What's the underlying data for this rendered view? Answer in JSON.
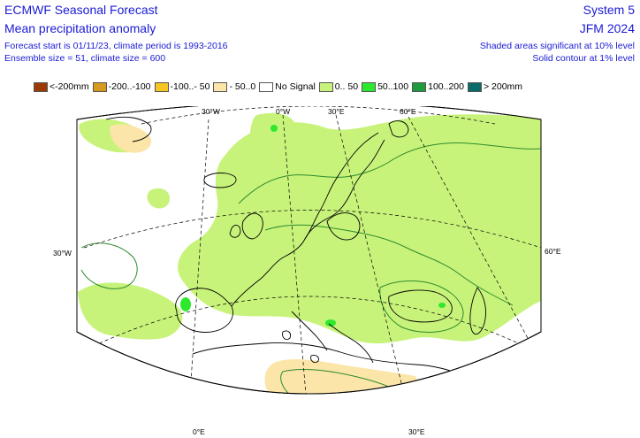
{
  "header": {
    "title_line1": "ECMWF Seasonal Forecast",
    "title_line2": "Mean precipitation anomaly",
    "info_line1": "Forecast start is 01/11/23, climate period is 1993-2016",
    "info_line2": "Ensemble size = 51, climate size = 600",
    "system": "System 5",
    "season": "JFM 2024",
    "significance_line1": "Shaded areas significant at 10% level",
    "significance_line2": "Solid contour at 1% level"
  },
  "legend": [
    {
      "label": "<-200mm",
      "color": "#9c3a05"
    },
    {
      "label": "-200..-100",
      "color": "#d69a1f"
    },
    {
      "label": "-100..- 50",
      "color": "#f7c623"
    },
    {
      "label": "- 50..0",
      "color": "#fbe5a8"
    },
    {
      "label": "No Signal",
      "color": "#ffffff"
    },
    {
      "label": "0.. 50",
      "color": "#c8f37a"
    },
    {
      "label": "50..100",
      "color": "#2ee82e"
    },
    {
      "label": "100..200",
      "color": "#1f9a3c"
    },
    {
      "label": "> 200mm",
      "color": "#0b6b6b"
    }
  ],
  "grid_labels": {
    "top": [
      "30°W",
      "0°W",
      "30°E",
      "60°E"
    ],
    "left": "30°W",
    "right": "60°E",
    "bottom": [
      "0°E",
      "30°E"
    ]
  },
  "map": {
    "region": "Europe / North Atlantic",
    "colors": {
      "land_outline": "#000000",
      "graticule": "#000000",
      "contour": "#2e8b2e",
      "positive_small": "#c8f37a",
      "positive_medium": "#2ee82e",
      "negative_small": "#fbe5a8"
    }
  }
}
